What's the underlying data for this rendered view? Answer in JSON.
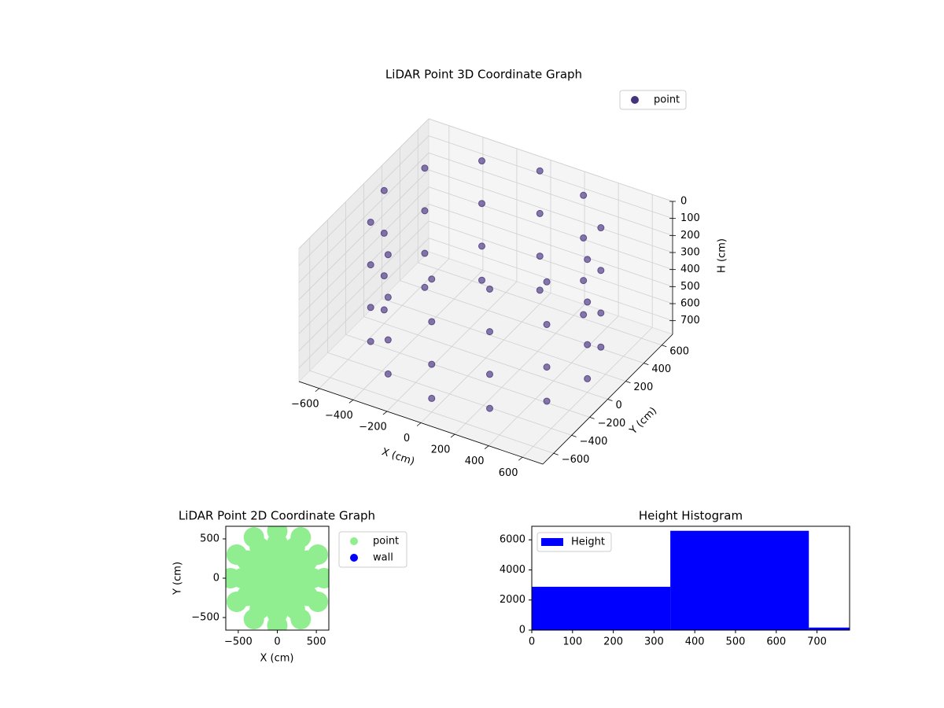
{
  "chart_data": [
    {
      "type": "scatter3d",
      "title": "LiDAR Point 3D Coordinate Graph",
      "xlabel": "X (cm)",
      "ylabel": "Y (cm)",
      "zlabel": "H (cm)",
      "xlim": [
        -720,
        720
      ],
      "ylim": [
        -720,
        720
      ],
      "zlim": [
        0,
        780
      ],
      "zinverted": true,
      "grid": true,
      "legend": "upper right",
      "xticks": [
        {
          "value": -600,
          "label": "−600"
        },
        {
          "value": -400,
          "label": "−400"
        },
        {
          "value": -200,
          "label": "−200"
        },
        0,
        200,
        400,
        600
      ],
      "yticks": [
        {
          "value": -600,
          "label": "−600"
        },
        {
          "value": -400,
          "label": "−400"
        },
        {
          "value": -200,
          "label": "−200"
        },
        0,
        200,
        400,
        600
      ],
      "zticks": [
        0,
        100,
        200,
        300,
        400,
        500,
        600,
        700
      ],
      "series": [
        {
          "name": "point",
          "color": "#46337e",
          "x": [
            600,
            520,
            300,
            0,
            -300,
            -520,
            -600,
            -520,
            -300,
            0,
            300,
            520,
            600,
            520,
            300,
            0,
            -300,
            -520,
            -600,
            -520,
            -300,
            0,
            300,
            520,
            600,
            520,
            300,
            0,
            -300,
            -520,
            -600,
            -520,
            -300,
            0,
            300,
            520,
            600,
            520,
            300,
            0,
            -300,
            -520,
            -600,
            -520,
            -300,
            0,
            300,
            520
          ],
          "y": [
            0,
            300,
            520,
            600,
            520,
            300,
            0,
            -300,
            -520,
            -600,
            -520,
            -300,
            0,
            300,
            520,
            600,
            520,
            300,
            0,
            -300,
            -520,
            -600,
            -520,
            -300,
            0,
            300,
            520,
            600,
            520,
            300,
            0,
            -300,
            -520,
            -600,
            -520,
            -300,
            0,
            300,
            520,
            600,
            520,
            300,
            0,
            -300,
            -520,
            -600,
            -520,
            -300
          ],
          "z": [
            0,
            0,
            0,
            0,
            0,
            0,
            0,
            0,
            0,
            0,
            0,
            0,
            250,
            250,
            250,
            250,
            250,
            250,
            250,
            250,
            250,
            250,
            250,
            250,
            500,
            500,
            500,
            500,
            500,
            500,
            500,
            500,
            500,
            500,
            500,
            500,
            700,
            700,
            700,
            700,
            700,
            700,
            700,
            700,
            700,
            700,
            700,
            700
          ]
        }
      ]
    },
    {
      "type": "scatter",
      "title": "LiDAR Point 2D Coordinate Graph",
      "xlabel": "X (cm)",
      "ylabel": "Y (cm)",
      "xlim": [
        -660,
        660
      ],
      "ylim": [
        -660,
        660
      ],
      "legend": "outside upper right",
      "xticks": [
        {
          "value": -500,
          "label": "−500"
        },
        0,
        500
      ],
      "yticks": [
        {
          "value": -500,
          "label": "−500"
        },
        0,
        500
      ],
      "series": [
        {
          "name": "point",
          "color": "#90ee90",
          "x": [
            600,
            520,
            300,
            0,
            -300,
            -520,
            -600,
            -520,
            -300,
            0,
            300,
            520,
            450,
            390,
            225,
            0,
            -225,
            -390,
            -450,
            -390,
            -225,
            0,
            225,
            390,
            300,
            260,
            150,
            0,
            -150,
            -260,
            -300,
            -260,
            -150,
            0,
            150,
            260,
            150,
            130,
            75,
            0,
            -75,
            -130,
            -150,
            -130,
            -75,
            0,
            75,
            130,
            0
          ],
          "y": [
            0,
            300,
            520,
            600,
            520,
            300,
            0,
            -300,
            -520,
            -600,
            -520,
            -300,
            0,
            225,
            390,
            450,
            390,
            225,
            0,
            -225,
            -390,
            -450,
            -390,
            -225,
            0,
            150,
            260,
            300,
            260,
            150,
            0,
            -150,
            -260,
            -300,
            -260,
            -150,
            0,
            75,
            130,
            150,
            130,
            75,
            0,
            -75,
            -130,
            -150,
            -130,
            -75,
            0
          ]
        },
        {
          "name": "wall",
          "color": "#0000ff",
          "x": [],
          "y": []
        }
      ]
    },
    {
      "type": "histogram",
      "title": "Height Histogram",
      "xlim": [
        0,
        780
      ],
      "ylim": [
        0,
        6900
      ],
      "legend": "upper left",
      "xticks": [
        0,
        100,
        200,
        300,
        400,
        500,
        600,
        700
      ],
      "yticks": [
        0,
        2000,
        4000,
        6000
      ],
      "series": [
        {
          "name": "Height",
          "color": "#0000ff",
          "bins": [
            0,
            340,
            680,
            1020
          ],
          "counts": [
            2880,
            6600,
            170
          ]
        }
      ]
    }
  ]
}
